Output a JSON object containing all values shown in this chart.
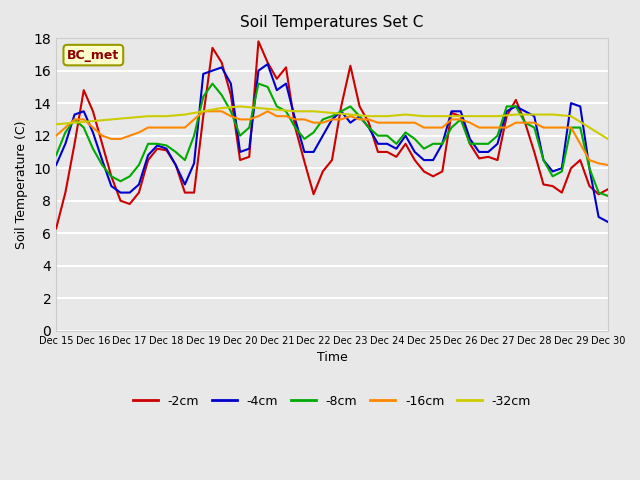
{
  "title": "Soil Temperatures Set C",
  "xlabel": "Time",
  "ylabel": "Soil Temperature (C)",
  "annotation": "BC_met",
  "xlim": [
    0,
    15
  ],
  "ylim": [
    0,
    18
  ],
  "yticks": [
    0,
    2,
    4,
    6,
    8,
    10,
    12,
    14,
    16,
    18
  ],
  "xtick_labels": [
    "Dec 15",
    "Dec 16",
    "Dec 17",
    "Dec 18",
    "Dec 19",
    "Dec 20",
    "Dec 21",
    "Dec 22",
    "Dec 23",
    "Dec 24",
    "Dec 25",
    "Dec 26",
    "Dec 27",
    "Dec 28",
    "Dec 29",
    "Dec 30"
  ],
  "background_color": "#e8e8e8",
  "plot_bg_color": "#e8e8e8",
  "grid_color": "#ffffff",
  "series": {
    "-2cm": {
      "color": "#cc0000",
      "x": [
        0,
        0.25,
        0.5,
        0.75,
        1.0,
        1.25,
        1.5,
        1.75,
        2.0,
        2.25,
        2.5,
        2.75,
        3.0,
        3.25,
        3.5,
        3.75,
        4.0,
        4.25,
        4.5,
        4.75,
        5.0,
        5.25,
        5.5,
        5.75,
        6.0,
        6.25,
        6.5,
        6.75,
        7.0,
        7.25,
        7.5,
        7.75,
        8.0,
        8.25,
        8.5,
        8.75,
        9.0,
        9.25,
        9.5,
        9.75,
        10.0,
        10.25,
        10.5,
        10.75,
        11.0,
        11.25,
        11.5,
        11.75,
        12.0,
        12.25,
        12.5,
        12.75,
        13.0,
        13.25,
        13.5,
        13.75,
        14.0,
        14.25,
        14.5,
        14.75,
        15.0
      ],
      "y": [
        6.3,
        8.5,
        11.5,
        14.8,
        13.5,
        11.5,
        9.5,
        8.0,
        7.8,
        8.5,
        10.5,
        11.2,
        11.1,
        10.2,
        8.5,
        8.5,
        13.2,
        17.4,
        16.5,
        14.5,
        10.5,
        10.7,
        17.8,
        16.5,
        15.5,
        16.2,
        12.5,
        10.4,
        8.4,
        9.8,
        10.5,
        13.8,
        16.3,
        13.8,
        12.8,
        11.0,
        11.0,
        10.7,
        11.5,
        10.5,
        9.8,
        9.5,
        9.8,
        13.4,
        13.2,
        11.5,
        10.6,
        10.7,
        10.5,
        13.2,
        14.2,
        12.8,
        11.0,
        9.0,
        8.9,
        8.5,
        10.0,
        10.5,
        8.9,
        8.4,
        8.7
      ]
    },
    "-4cm": {
      "color": "#0000cc",
      "x": [
        0,
        0.25,
        0.5,
        0.75,
        1.0,
        1.25,
        1.5,
        1.75,
        2.0,
        2.25,
        2.5,
        2.75,
        3.0,
        3.25,
        3.5,
        3.75,
        4.0,
        4.25,
        4.5,
        4.75,
        5.0,
        5.25,
        5.5,
        5.75,
        6.0,
        6.25,
        6.5,
        6.75,
        7.0,
        7.25,
        7.5,
        7.75,
        8.0,
        8.25,
        8.5,
        8.75,
        9.0,
        9.25,
        9.5,
        9.75,
        10.0,
        10.25,
        10.5,
        10.75,
        11.0,
        11.25,
        11.5,
        11.75,
        12.0,
        12.25,
        12.5,
        12.75,
        13.0,
        13.25,
        13.5,
        13.75,
        14.0,
        14.25,
        14.5,
        14.75,
        15.0
      ],
      "y": [
        10.2,
        11.5,
        13.3,
        13.5,
        12.2,
        10.5,
        8.9,
        8.5,
        8.5,
        9.0,
        10.8,
        11.4,
        11.2,
        10.2,
        9.0,
        10.3,
        15.8,
        16.0,
        16.2,
        15.2,
        11.0,
        11.2,
        16.0,
        16.4,
        14.8,
        15.2,
        13.0,
        11.0,
        11.0,
        12.0,
        13.0,
        13.5,
        12.8,
        13.2,
        12.5,
        11.5,
        11.5,
        11.2,
        12.0,
        11.0,
        10.5,
        10.5,
        11.5,
        13.5,
        13.5,
        11.8,
        11.0,
        11.0,
        11.5,
        13.5,
        13.8,
        13.5,
        13.2,
        10.5,
        9.8,
        10.0,
        14.0,
        13.8,
        10.0,
        7.0,
        6.7
      ]
    },
    "-8cm": {
      "color": "#00aa00",
      "x": [
        0,
        0.25,
        0.5,
        0.75,
        1.0,
        1.25,
        1.5,
        1.75,
        2.0,
        2.25,
        2.5,
        2.75,
        3.0,
        3.25,
        3.5,
        3.75,
        4.0,
        4.25,
        4.5,
        4.75,
        5.0,
        5.25,
        5.5,
        5.75,
        6.0,
        6.25,
        6.5,
        6.75,
        7.0,
        7.25,
        7.5,
        7.75,
        8.0,
        8.25,
        8.5,
        8.75,
        9.0,
        9.25,
        9.5,
        9.75,
        10.0,
        10.25,
        10.5,
        10.75,
        11.0,
        11.25,
        11.5,
        11.75,
        12.0,
        12.25,
        12.5,
        12.75,
        13.0,
        13.25,
        13.5,
        13.75,
        14.0,
        14.25,
        14.5,
        14.75,
        15.0
      ],
      "y": [
        10.8,
        12.2,
        13.0,
        12.5,
        11.2,
        10.2,
        9.5,
        9.2,
        9.5,
        10.2,
        11.5,
        11.5,
        11.4,
        11.0,
        10.5,
        12.0,
        14.4,
        15.2,
        14.5,
        13.5,
        12.0,
        12.5,
        15.2,
        15.0,
        13.8,
        13.5,
        12.5,
        11.8,
        12.2,
        13.0,
        13.2,
        13.5,
        13.8,
        13.2,
        12.5,
        12.0,
        12.0,
        11.5,
        12.2,
        11.8,
        11.2,
        11.5,
        11.5,
        12.5,
        13.0,
        11.5,
        11.5,
        11.5,
        12.0,
        13.8,
        13.8,
        12.8,
        12.5,
        10.5,
        9.5,
        9.8,
        12.5,
        12.5,
        10.0,
        8.5,
        8.3
      ]
    },
    "-16cm": {
      "color": "#ff8800",
      "x": [
        0,
        0.25,
        0.5,
        0.75,
        1.0,
        1.25,
        1.5,
        1.75,
        2.0,
        2.25,
        2.5,
        2.75,
        3.0,
        3.25,
        3.5,
        3.75,
        4.0,
        4.25,
        4.5,
        4.75,
        5.0,
        5.25,
        5.5,
        5.75,
        6.0,
        6.25,
        6.5,
        6.75,
        7.0,
        7.25,
        7.5,
        7.75,
        8.0,
        8.25,
        8.5,
        8.75,
        9.0,
        9.25,
        9.5,
        9.75,
        10.0,
        10.25,
        10.5,
        10.75,
        11.0,
        11.25,
        11.5,
        11.75,
        12.0,
        12.25,
        12.5,
        12.75,
        13.0,
        13.25,
        13.5,
        13.75,
        14.0,
        14.25,
        14.5,
        14.75,
        15.0
      ],
      "y": [
        12.0,
        12.5,
        13.0,
        13.0,
        12.5,
        12.0,
        11.8,
        11.8,
        12.0,
        12.2,
        12.5,
        12.5,
        12.5,
        12.5,
        12.5,
        13.0,
        13.5,
        13.5,
        13.5,
        13.2,
        13.0,
        13.0,
        13.2,
        13.5,
        13.2,
        13.2,
        13.0,
        13.0,
        12.8,
        12.8,
        13.0,
        13.0,
        13.2,
        13.0,
        13.0,
        12.8,
        12.8,
        12.8,
        12.8,
        12.8,
        12.5,
        12.5,
        12.5,
        13.0,
        13.0,
        12.8,
        12.5,
        12.5,
        12.5,
        12.5,
        12.8,
        12.8,
        12.8,
        12.5,
        12.5,
        12.5,
        12.5,
        11.5,
        10.5,
        10.3,
        10.2
      ]
    },
    "-32cm": {
      "color": "#cccc00",
      "x": [
        0,
        0.5,
        1.0,
        1.5,
        2.0,
        2.5,
        3.0,
        3.5,
        4.0,
        4.5,
        5.0,
        5.5,
        6.0,
        6.5,
        7.0,
        7.5,
        8.0,
        8.5,
        9.0,
        9.5,
        10.0,
        10.5,
        11.0,
        11.5,
        12.0,
        12.5,
        13.0,
        13.5,
        14.0,
        14.5,
        15.0
      ],
      "y": [
        12.7,
        12.8,
        12.9,
        13.0,
        13.1,
        13.2,
        13.2,
        13.3,
        13.5,
        13.7,
        13.8,
        13.7,
        13.6,
        13.5,
        13.5,
        13.4,
        13.3,
        13.2,
        13.2,
        13.3,
        13.2,
        13.2,
        13.2,
        13.2,
        13.2,
        13.3,
        13.3,
        13.3,
        13.2,
        12.5,
        11.8
      ]
    }
  }
}
